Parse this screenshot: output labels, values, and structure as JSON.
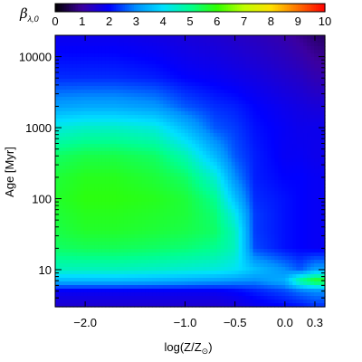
{
  "chart_data": {
    "type": "heatmap",
    "colorbar": {
      "title": "β",
      "title_subscript": "λ,0",
      "range": [
        0,
        10
      ],
      "tick_labels": [
        "0",
        "1",
        "2",
        "3",
        "4",
        "5",
        "6",
        "7",
        "8",
        "9",
        "10"
      ],
      "colormap": [
        "#000000",
        "#3c00a0",
        "#0000ff",
        "#0090ff",
        "#00e0ff",
        "#00ff90",
        "#30ff00",
        "#c0ff00",
        "#ffe000",
        "#ff7000",
        "#ff0000"
      ]
    },
    "xlabel": "log(Z/Z",
    "xlabel_sun": "⊙",
    "xlabel_close": ")",
    "ylabel_main": "Age ",
    "ylabel_unit": "[Myr]",
    "xlim": [
      -2.3,
      0.4
    ],
    "ylim": [
      3,
      20000
    ],
    "yscale": "log",
    "x_ticks": [
      -2.0,
      -1.0,
      -0.5,
      0.0,
      0.3
    ],
    "x_tick_labels": [
      "−2.0",
      "−1.0",
      "−0.5",
      "0.0",
      "0.3"
    ],
    "y_ticks": [
      10,
      100,
      1000,
      10000
    ],
    "y_tick_labels": [
      "10",
      "100",
      "1000",
      "10000"
    ],
    "x_grid": [
      -2.3,
      -2.0,
      -1.7,
      -1.3,
      -1.0,
      -0.7,
      -0.5,
      -0.3,
      0.0,
      0.15,
      0.3,
      0.4
    ],
    "y_grid": [
      3,
      5,
      7,
      10,
      20,
      35,
      60,
      100,
      200,
      400,
      1000,
      2000,
      5000,
      20000
    ],
    "z": [
      [
        1.5,
        1.5,
        1.5,
        1.5,
        1.5,
        1.5,
        1.6,
        1.8,
        2.0,
        2.1,
        2.3,
        2.3
      ],
      [
        1.9,
        1.9,
        1.9,
        1.9,
        1.9,
        1.9,
        2.0,
        2.2,
        2.5,
        2.8,
        3.0,
        3.0
      ],
      [
        3.5,
        3.5,
        3.5,
        3.4,
        3.3,
        3.2,
        3.1,
        3.0,
        3.4,
        5.0,
        5.8,
        5.8
      ],
      [
        4.6,
        4.6,
        4.6,
        4.5,
        4.4,
        4.3,
        4.1,
        3.6,
        3.0,
        2.6,
        3.2,
        3.2
      ],
      [
        5.3,
        5.4,
        5.4,
        5.3,
        5.2,
        5.0,
        4.6,
        2.5,
        2.1,
        2.0,
        1.9,
        1.9
      ],
      [
        5.5,
        5.7,
        5.7,
        5.6,
        5.5,
        5.3,
        4.6,
        2.4,
        2.1,
        2.0,
        1.9,
        1.9
      ],
      [
        5.6,
        5.8,
        5.8,
        5.7,
        5.6,
        5.2,
        4.2,
        2.4,
        2.1,
        2.0,
        1.9,
        1.9
      ],
      [
        5.7,
        5.9,
        5.9,
        5.8,
        5.6,
        5.0,
        3.6,
        2.3,
        2.1,
        2.0,
        1.9,
        1.9
      ],
      [
        5.6,
        5.8,
        5.8,
        5.6,
        5.3,
        4.4,
        3.0,
        2.2,
        2.0,
        2.0,
        1.9,
        1.9
      ],
      [
        5.3,
        5.5,
        5.5,
        5.3,
        4.7,
        3.5,
        2.6,
        2.2,
        1.9,
        1.9,
        1.8,
        1.8
      ],
      [
        4.3,
        4.5,
        4.5,
        4.3,
        3.5,
        2.6,
        2.4,
        2.1,
        1.9,
        1.8,
        1.8,
        1.8
      ],
      [
        3.2,
        3.3,
        3.3,
        3.1,
        2.6,
        2.3,
        2.2,
        2.0,
        1.8,
        1.7,
        1.6,
        1.6
      ],
      [
        2.3,
        2.3,
        2.3,
        2.2,
        2.0,
        1.9,
        1.8,
        1.7,
        1.5,
        1.4,
        1.2,
        1.2
      ],
      [
        1.8,
        1.8,
        1.8,
        1.7,
        1.6,
        1.5,
        1.4,
        1.3,
        1.1,
        0.9,
        0.7,
        0.6
      ]
    ]
  }
}
